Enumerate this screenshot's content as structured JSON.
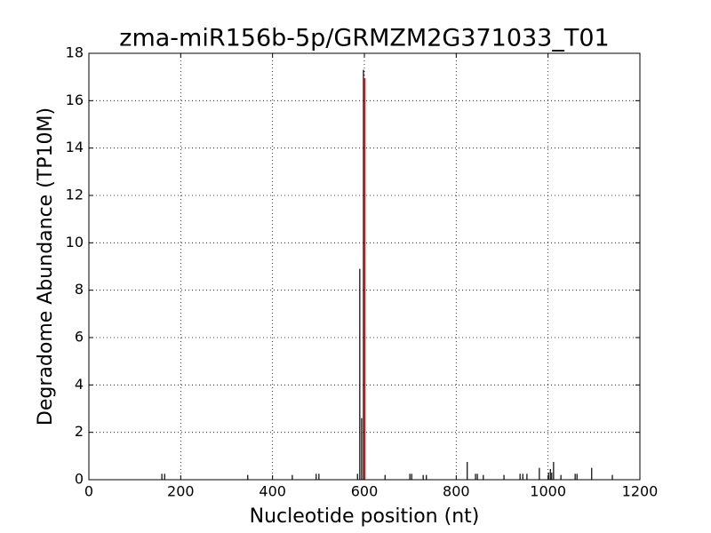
{
  "chart_data": {
    "type": "stem",
    "title": "zma-miR156b-5p/GRMZM2G371033_T01",
    "xlabel": "Nucleotide position (nt)",
    "ylabel": "Degradome Abundance (TP10M)",
    "xlim": [
      0,
      1200
    ],
    "xticks": [
      0,
      200,
      400,
      600,
      800,
      1000,
      1200
    ],
    "ylim": [
      0,
      18
    ],
    "yticks": [
      0,
      2,
      4,
      6,
      8,
      10,
      12,
      14,
      16,
      18
    ],
    "grid": true,
    "series": [
      {
        "color": "#000000",
        "x": [
          159,
          165,
          346,
          443,
          495,
          501,
          585,
          590,
          594,
          598,
          645,
          699,
          703,
          728,
          735,
          824,
          842,
          846,
          859,
          904,
          939,
          945,
          954,
          981,
          1001,
          1005,
          1008,
          1012,
          1028,
          1059,
          1063,
          1095,
          1140
        ],
        "values": [
          0.25,
          0.25,
          0.2,
          0.2,
          0.25,
          0.25,
          0.25,
          8.9,
          2.6,
          17.3,
          0.2,
          0.25,
          0.25,
          0.2,
          0.2,
          0.75,
          0.25,
          0.25,
          0.2,
          0.2,
          0.25,
          0.25,
          0.25,
          0.5,
          0.3,
          0.45,
          0.3,
          0.75,
          0.2,
          0.25,
          0.25,
          0.5,
          0.2
        ]
      },
      {
        "color": "#ff0000",
        "x": [
          600
        ],
        "values": [
          16.95
        ]
      }
    ]
  }
}
